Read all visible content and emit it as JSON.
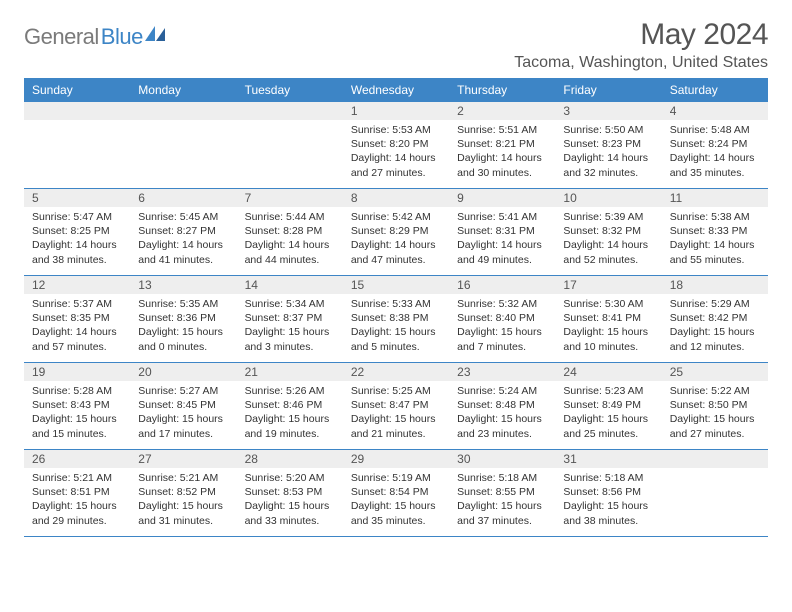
{
  "logo": {
    "text1": "General",
    "text2": "Blue"
  },
  "title": "May 2024",
  "location": "Tacoma, Washington, United States",
  "dayHeaders": [
    "Sunday",
    "Monday",
    "Tuesday",
    "Wednesday",
    "Thursday",
    "Friday",
    "Saturday"
  ],
  "colors": {
    "headerBg": "#3d85c6",
    "headerText": "#ffffff",
    "dayNumBg": "#eeeeee",
    "borderColor": "#3d85c6",
    "bodyText": "#333333",
    "titleText": "#555555"
  },
  "layout": {
    "columns": 7,
    "rows": 5,
    "cellMinHeight": 86
  },
  "fonts": {
    "family": "Arial",
    "monthTitleSize": 30,
    "locationSize": 16,
    "dayHeaderSize": 12,
    "dayNumSize": 12,
    "detailSize": 10.5
  },
  "weeks": [
    [
      {
        "num": "",
        "sunrise": "",
        "sunset": "",
        "daylight": ""
      },
      {
        "num": "",
        "sunrise": "",
        "sunset": "",
        "daylight": ""
      },
      {
        "num": "",
        "sunrise": "",
        "sunset": "",
        "daylight": ""
      },
      {
        "num": "1",
        "sunrise": "Sunrise: 5:53 AM",
        "sunset": "Sunset: 8:20 PM",
        "daylight": "Daylight: 14 hours and 27 minutes."
      },
      {
        "num": "2",
        "sunrise": "Sunrise: 5:51 AM",
        "sunset": "Sunset: 8:21 PM",
        "daylight": "Daylight: 14 hours and 30 minutes."
      },
      {
        "num": "3",
        "sunrise": "Sunrise: 5:50 AM",
        "sunset": "Sunset: 8:23 PM",
        "daylight": "Daylight: 14 hours and 32 minutes."
      },
      {
        "num": "4",
        "sunrise": "Sunrise: 5:48 AM",
        "sunset": "Sunset: 8:24 PM",
        "daylight": "Daylight: 14 hours and 35 minutes."
      }
    ],
    [
      {
        "num": "5",
        "sunrise": "Sunrise: 5:47 AM",
        "sunset": "Sunset: 8:25 PM",
        "daylight": "Daylight: 14 hours and 38 minutes."
      },
      {
        "num": "6",
        "sunrise": "Sunrise: 5:45 AM",
        "sunset": "Sunset: 8:27 PM",
        "daylight": "Daylight: 14 hours and 41 minutes."
      },
      {
        "num": "7",
        "sunrise": "Sunrise: 5:44 AM",
        "sunset": "Sunset: 8:28 PM",
        "daylight": "Daylight: 14 hours and 44 minutes."
      },
      {
        "num": "8",
        "sunrise": "Sunrise: 5:42 AM",
        "sunset": "Sunset: 8:29 PM",
        "daylight": "Daylight: 14 hours and 47 minutes."
      },
      {
        "num": "9",
        "sunrise": "Sunrise: 5:41 AM",
        "sunset": "Sunset: 8:31 PM",
        "daylight": "Daylight: 14 hours and 49 minutes."
      },
      {
        "num": "10",
        "sunrise": "Sunrise: 5:39 AM",
        "sunset": "Sunset: 8:32 PM",
        "daylight": "Daylight: 14 hours and 52 minutes."
      },
      {
        "num": "11",
        "sunrise": "Sunrise: 5:38 AM",
        "sunset": "Sunset: 8:33 PM",
        "daylight": "Daylight: 14 hours and 55 minutes."
      }
    ],
    [
      {
        "num": "12",
        "sunrise": "Sunrise: 5:37 AM",
        "sunset": "Sunset: 8:35 PM",
        "daylight": "Daylight: 14 hours and 57 minutes."
      },
      {
        "num": "13",
        "sunrise": "Sunrise: 5:35 AM",
        "sunset": "Sunset: 8:36 PM",
        "daylight": "Daylight: 15 hours and 0 minutes."
      },
      {
        "num": "14",
        "sunrise": "Sunrise: 5:34 AM",
        "sunset": "Sunset: 8:37 PM",
        "daylight": "Daylight: 15 hours and 3 minutes."
      },
      {
        "num": "15",
        "sunrise": "Sunrise: 5:33 AM",
        "sunset": "Sunset: 8:38 PM",
        "daylight": "Daylight: 15 hours and 5 minutes."
      },
      {
        "num": "16",
        "sunrise": "Sunrise: 5:32 AM",
        "sunset": "Sunset: 8:40 PM",
        "daylight": "Daylight: 15 hours and 7 minutes."
      },
      {
        "num": "17",
        "sunrise": "Sunrise: 5:30 AM",
        "sunset": "Sunset: 8:41 PM",
        "daylight": "Daylight: 15 hours and 10 minutes."
      },
      {
        "num": "18",
        "sunrise": "Sunrise: 5:29 AM",
        "sunset": "Sunset: 8:42 PM",
        "daylight": "Daylight: 15 hours and 12 minutes."
      }
    ],
    [
      {
        "num": "19",
        "sunrise": "Sunrise: 5:28 AM",
        "sunset": "Sunset: 8:43 PM",
        "daylight": "Daylight: 15 hours and 15 minutes."
      },
      {
        "num": "20",
        "sunrise": "Sunrise: 5:27 AM",
        "sunset": "Sunset: 8:45 PM",
        "daylight": "Daylight: 15 hours and 17 minutes."
      },
      {
        "num": "21",
        "sunrise": "Sunrise: 5:26 AM",
        "sunset": "Sunset: 8:46 PM",
        "daylight": "Daylight: 15 hours and 19 minutes."
      },
      {
        "num": "22",
        "sunrise": "Sunrise: 5:25 AM",
        "sunset": "Sunset: 8:47 PM",
        "daylight": "Daylight: 15 hours and 21 minutes."
      },
      {
        "num": "23",
        "sunrise": "Sunrise: 5:24 AM",
        "sunset": "Sunset: 8:48 PM",
        "daylight": "Daylight: 15 hours and 23 minutes."
      },
      {
        "num": "24",
        "sunrise": "Sunrise: 5:23 AM",
        "sunset": "Sunset: 8:49 PM",
        "daylight": "Daylight: 15 hours and 25 minutes."
      },
      {
        "num": "25",
        "sunrise": "Sunrise: 5:22 AM",
        "sunset": "Sunset: 8:50 PM",
        "daylight": "Daylight: 15 hours and 27 minutes."
      }
    ],
    [
      {
        "num": "26",
        "sunrise": "Sunrise: 5:21 AM",
        "sunset": "Sunset: 8:51 PM",
        "daylight": "Daylight: 15 hours and 29 minutes."
      },
      {
        "num": "27",
        "sunrise": "Sunrise: 5:21 AM",
        "sunset": "Sunset: 8:52 PM",
        "daylight": "Daylight: 15 hours and 31 minutes."
      },
      {
        "num": "28",
        "sunrise": "Sunrise: 5:20 AM",
        "sunset": "Sunset: 8:53 PM",
        "daylight": "Daylight: 15 hours and 33 minutes."
      },
      {
        "num": "29",
        "sunrise": "Sunrise: 5:19 AM",
        "sunset": "Sunset: 8:54 PM",
        "daylight": "Daylight: 15 hours and 35 minutes."
      },
      {
        "num": "30",
        "sunrise": "Sunrise: 5:18 AM",
        "sunset": "Sunset: 8:55 PM",
        "daylight": "Daylight: 15 hours and 37 minutes."
      },
      {
        "num": "31",
        "sunrise": "Sunrise: 5:18 AM",
        "sunset": "Sunset: 8:56 PM",
        "daylight": "Daylight: 15 hours and 38 minutes."
      },
      {
        "num": "",
        "sunrise": "",
        "sunset": "",
        "daylight": ""
      }
    ]
  ]
}
